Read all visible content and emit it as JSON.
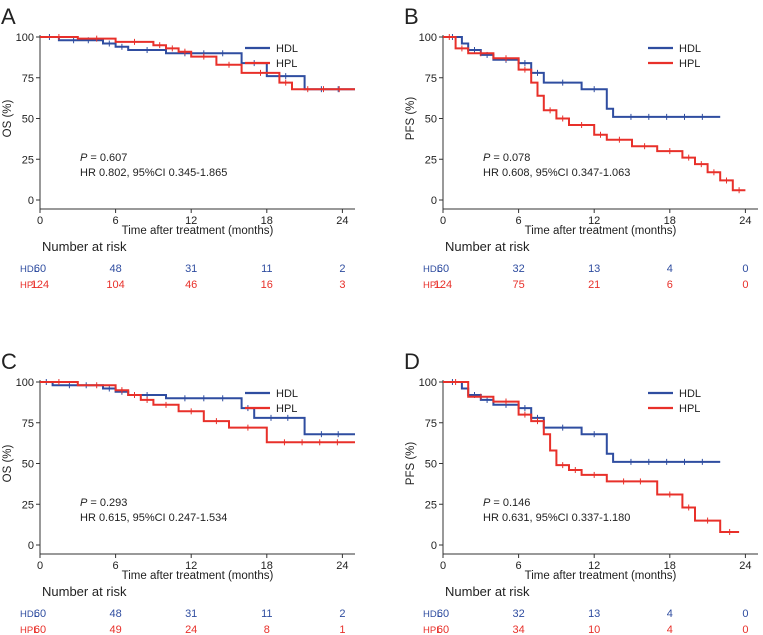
{
  "colors": {
    "HDL": "#2f4da0",
    "HPL": "#e8302a",
    "axis": "#333333",
    "text": "#222222"
  },
  "axis_labels": {
    "x": "Time after treatment (months)"
  },
  "risk_title": "Number at risk",
  "chart_data": [
    {
      "type": "line",
      "panel": "A",
      "ylabel": "OS (%)",
      "xlabel": "Time after treatment (months)",
      "xlim": [
        0,
        25
      ],
      "ylim": [
        0,
        100
      ],
      "xticks": [
        0,
        6,
        12,
        18,
        24
      ],
      "yticks": [
        0,
        25,
        50,
        75,
        100
      ],
      "p_label": "P",
      "p_text": " = 0.607",
      "hr_text": "HR 0.802, 95%CI 0.345-1.865",
      "legend": [
        "HDL",
        "HPL"
      ],
      "series": [
        {
          "name": "HDL",
          "points": [
            [
              0,
              100
            ],
            [
              1.5,
              100
            ],
            [
              1.5,
              98
            ],
            [
              5,
              98
            ],
            [
              5,
              96
            ],
            [
              6,
              96
            ],
            [
              6,
              94
            ],
            [
              7,
              94
            ],
            [
              7,
              92
            ],
            [
              10,
              92
            ],
            [
              10,
              90
            ],
            [
              16,
              90
            ],
            [
              16,
              84
            ],
            [
              18,
              84
            ],
            [
              18,
              76
            ],
            [
              21,
              76
            ],
            [
              21,
              68
            ],
            [
              25,
              68
            ]
          ]
        },
        {
          "name": "HPL",
          "points": [
            [
              0,
              100
            ],
            [
              3,
              100
            ],
            [
              3,
              99
            ],
            [
              6,
              99
            ],
            [
              6,
              97
            ],
            [
              9,
              97
            ],
            [
              9,
              95
            ],
            [
              10,
              95
            ],
            [
              10,
              93
            ],
            [
              11,
              93
            ],
            [
              11,
              91
            ],
            [
              12,
              91
            ],
            [
              12,
              88
            ],
            [
              14,
              88
            ],
            [
              14,
              83
            ],
            [
              16,
              83
            ],
            [
              16,
              78
            ],
            [
              19,
              78
            ],
            [
              19,
              72
            ],
            [
              20,
              72
            ],
            [
              20,
              68
            ],
            [
              25,
              68
            ]
          ]
        }
      ],
      "risk_table": {
        "times": [
          0,
          6,
          12,
          18,
          24
        ],
        "rows": [
          {
            "name": "HDL",
            "values": [
              "60",
              "48",
              "31",
              "11",
              "2"
            ]
          },
          {
            "name": "HPL",
            "values": [
              "124",
              "104",
              "46",
              "16",
              "3"
            ]
          }
        ]
      }
    },
    {
      "type": "line",
      "panel": "B",
      "ylabel": "PFS (%)",
      "xlabel": "Time after treatment (months)",
      "xlim": [
        0,
        25
      ],
      "ylim": [
        0,
        100
      ],
      "xticks": [
        0,
        6,
        12,
        18,
        24
      ],
      "yticks": [
        0,
        25,
        50,
        75,
        100
      ],
      "p_label": "P",
      "p_text": " = 0.078",
      "hr_text": "HR 0.608, 95%CI 0.347-1.063",
      "legend": [
        "HDL",
        "HPL"
      ],
      "series": [
        {
          "name": "HDL",
          "points": [
            [
              0,
              100
            ],
            [
              1.5,
              100
            ],
            [
              1.5,
              96
            ],
            [
              2,
              96
            ],
            [
              2,
              92
            ],
            [
              3,
              92
            ],
            [
              3,
              89
            ],
            [
              4,
              89
            ],
            [
              4,
              86
            ],
            [
              6,
              86
            ],
            [
              6,
              84
            ],
            [
              7,
              84
            ],
            [
              7,
              78
            ],
            [
              8,
              78
            ],
            [
              8,
              72
            ],
            [
              11,
              72
            ],
            [
              11,
              68
            ],
            [
              13,
              68
            ],
            [
              13,
              56
            ],
            [
              13.5,
              56
            ],
            [
              13.5,
              51
            ],
            [
              22,
              51
            ]
          ]
        },
        {
          "name": "HPL",
          "points": [
            [
              0,
              100
            ],
            [
              1,
              100
            ],
            [
              1,
              93
            ],
            [
              2,
              93
            ],
            [
              2,
              90
            ],
            [
              4,
              90
            ],
            [
              4,
              87
            ],
            [
              6,
              87
            ],
            [
              6,
              80
            ],
            [
              7,
              80
            ],
            [
              7,
              72
            ],
            [
              7.5,
              72
            ],
            [
              7.5,
              64
            ],
            [
              8,
              64
            ],
            [
              8,
              55
            ],
            [
              9,
              55
            ],
            [
              9,
              50
            ],
            [
              10,
              50
            ],
            [
              10,
              46
            ],
            [
              12,
              46
            ],
            [
              12,
              40
            ],
            [
              13,
              40
            ],
            [
              13,
              37
            ],
            [
              15,
              37
            ],
            [
              15,
              33
            ],
            [
              17,
              33
            ],
            [
              17,
              30
            ],
            [
              19,
              30
            ],
            [
              19,
              26
            ],
            [
              20,
              26
            ],
            [
              20,
              22
            ],
            [
              21,
              22
            ],
            [
              21,
              17
            ],
            [
              22,
              17
            ],
            [
              22,
              12
            ],
            [
              23,
              12
            ],
            [
              23,
              6
            ],
            [
              24,
              6
            ]
          ]
        }
      ],
      "risk_table": {
        "times": [
          0,
          6,
          12,
          18,
          24
        ],
        "rows": [
          {
            "name": "HDL",
            "values": [
              "60",
              "32",
              "13",
              "4",
              "0"
            ]
          },
          {
            "name": "HPL",
            "values": [
              "124",
              "75",
              "21",
              "6",
              "0"
            ]
          }
        ]
      }
    },
    {
      "type": "line",
      "panel": "C",
      "ylabel": "OS (%)",
      "xlabel": "Time after treatment (months)",
      "xlim": [
        0,
        25
      ],
      "ylim": [
        0,
        100
      ],
      "xticks": [
        0,
        6,
        12,
        18,
        24
      ],
      "yticks": [
        0,
        25,
        50,
        75,
        100
      ],
      "p_label": "P",
      "p_text": " = 0.293",
      "hr_text": "HR 0.615, 95%CI 0.247-1.534",
      "legend": [
        "HDL",
        "HPL"
      ],
      "series": [
        {
          "name": "HDL",
          "points": [
            [
              0,
              100
            ],
            [
              1,
              100
            ],
            [
              1,
              98
            ],
            [
              5,
              98
            ],
            [
              5,
              96
            ],
            [
              6,
              96
            ],
            [
              6,
              94
            ],
            [
              7,
              94
            ],
            [
              7,
              92
            ],
            [
              10,
              92
            ],
            [
              10,
              90
            ],
            [
              16,
              90
            ],
            [
              16,
              84
            ],
            [
              17,
              84
            ],
            [
              17,
              78
            ],
            [
              21,
              78
            ],
            [
              21,
              68
            ],
            [
              25,
              68
            ]
          ]
        },
        {
          "name": "HPL",
          "points": [
            [
              0,
              100
            ],
            [
              3,
              100
            ],
            [
              3,
              98
            ],
            [
              6,
              98
            ],
            [
              6,
              95
            ],
            [
              7,
              95
            ],
            [
              7,
              92
            ],
            [
              8,
              92
            ],
            [
              8,
              89
            ],
            [
              9,
              89
            ],
            [
              9,
              86
            ],
            [
              11,
              86
            ],
            [
              11,
              82
            ],
            [
              13,
              82
            ],
            [
              13,
              76
            ],
            [
              15,
              76
            ],
            [
              15,
              72
            ],
            [
              18,
              72
            ],
            [
              18,
              63
            ],
            [
              25,
              63
            ]
          ]
        }
      ],
      "risk_table": {
        "times": [
          0,
          6,
          12,
          18,
          24
        ],
        "rows": [
          {
            "name": "HDL",
            "values": [
              "60",
              "48",
              "31",
              "11",
              "2"
            ]
          },
          {
            "name": "HPL",
            "values": [
              "60",
              "49",
              "24",
              "8",
              "1"
            ]
          }
        ]
      }
    },
    {
      "type": "line",
      "panel": "D",
      "ylabel": "PFS (%)",
      "xlabel": "Time after treatment (months)",
      "xlim": [
        0,
        25
      ],
      "ylim": [
        0,
        100
      ],
      "xticks": [
        0,
        6,
        12,
        18,
        24
      ],
      "yticks": [
        0,
        25,
        50,
        75,
        100
      ],
      "p_label": "P",
      "p_text": " = 0.146",
      "hr_text": "HR 0.631, 95%CI 0.337-1.180",
      "legend": [
        "HDL",
        "HPL"
      ],
      "series": [
        {
          "name": "HDL",
          "points": [
            [
              0,
              100
            ],
            [
              1.5,
              100
            ],
            [
              1.5,
              96
            ],
            [
              2,
              96
            ],
            [
              2,
              92
            ],
            [
              3,
              92
            ],
            [
              3,
              89
            ],
            [
              4,
              89
            ],
            [
              4,
              86
            ],
            [
              6,
              86
            ],
            [
              6,
              84
            ],
            [
              7,
              84
            ],
            [
              7,
              78
            ],
            [
              8,
              78
            ],
            [
              8,
              72
            ],
            [
              11,
              72
            ],
            [
              11,
              68
            ],
            [
              13,
              68
            ],
            [
              13,
              56
            ],
            [
              13.5,
              56
            ],
            [
              13.5,
              51
            ],
            [
              22,
              51
            ]
          ]
        },
        {
          "name": "HPL",
          "points": [
            [
              0,
              100
            ],
            [
              2,
              100
            ],
            [
              2,
              91
            ],
            [
              4,
              91
            ],
            [
              4,
              88
            ],
            [
              6,
              88
            ],
            [
              6,
              80
            ],
            [
              7,
              80
            ],
            [
              7,
              76
            ],
            [
              8,
              76
            ],
            [
              8,
              68
            ],
            [
              8.5,
              68
            ],
            [
              8.5,
              58
            ],
            [
              9,
              58
            ],
            [
              9,
              49
            ],
            [
              10,
              49
            ],
            [
              10,
              46
            ],
            [
              11,
              46
            ],
            [
              11,
              43
            ],
            [
              13,
              43
            ],
            [
              13,
              39
            ],
            [
              17,
              39
            ],
            [
              17,
              31
            ],
            [
              19,
              31
            ],
            [
              19,
              23
            ],
            [
              20,
              23
            ],
            [
              20,
              15
            ],
            [
              22,
              15
            ],
            [
              22,
              8
            ],
            [
              23.5,
              8
            ]
          ]
        }
      ],
      "risk_table": {
        "times": [
          0,
          6,
          12,
          18,
          24
        ],
        "rows": [
          {
            "name": "HDL",
            "values": [
              "60",
              "32",
              "13",
              "4",
              "0"
            ]
          },
          {
            "name": "HPL",
            "values": [
              "60",
              "34",
              "10",
              "4",
              "0"
            ]
          }
        ]
      }
    }
  ]
}
